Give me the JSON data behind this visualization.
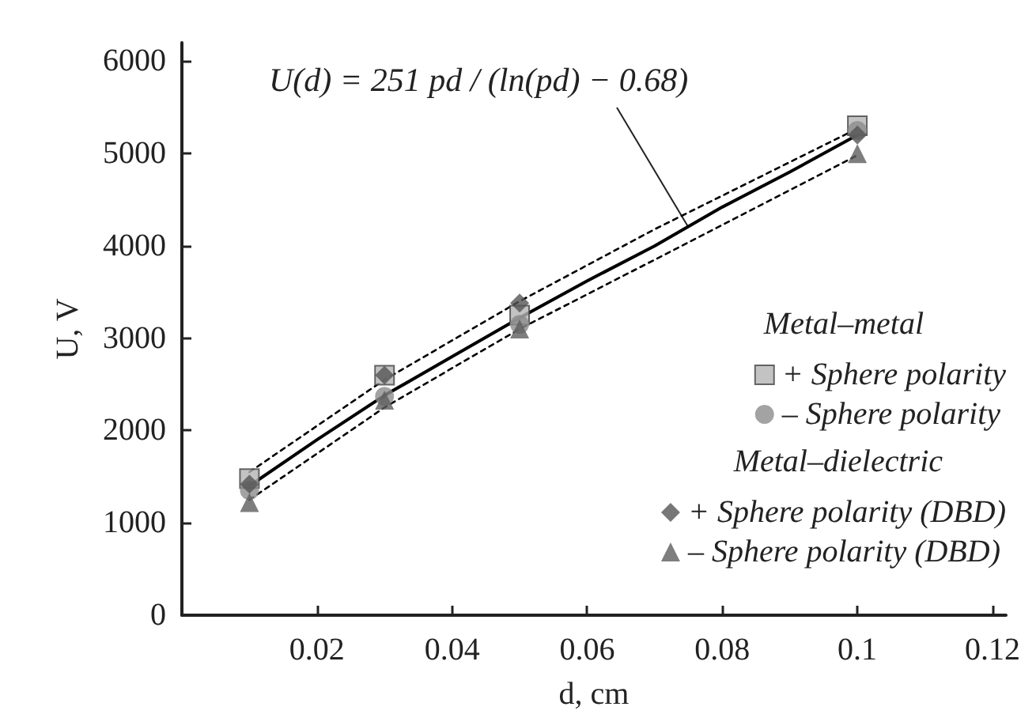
{
  "chart_data": {
    "type": "scatter",
    "xlabel": "d, cm",
    "ylabel": "U, V",
    "xlim": [
      0,
      0.122
    ],
    "xticks": [
      0.02,
      0.04,
      0.06,
      0.08,
      0.1,
      0.12
    ],
    "ylim": [
      0,
      6200
    ],
    "yticks": [
      0,
      1000,
      2000,
      3000,
      4000,
      5000,
      6000
    ],
    "grid": false,
    "legend": "right",
    "annotations": [
      {
        "text": "U(d) = 251 pd / (ln(pd) − 0.68)",
        "x": 0.075,
        "y": 4200
      },
      "Metal–metal",
      "Metal–dielectric"
    ],
    "series": [
      {
        "name": "+ Sphere polarity",
        "color": "#b4b4b4",
        "marker": "square",
        "x": [
          0.01,
          0.03,
          0.05,
          0.1
        ],
        "values": [
          1480,
          2600,
          3250,
          5300
        ]
      },
      {
        "name": "– Sphere polarity",
        "color": "#8c8c8c",
        "marker": "circle",
        "x": [
          0.01,
          0.03,
          0.05,
          0.1
        ],
        "values": [
          1350,
          2370,
          3150,
          5250
        ]
      },
      {
        "name": "+ Sphere polarity (DBD)",
        "color": "#555555",
        "marker": "diamond",
        "x": [
          0.01,
          0.03,
          0.05,
          0.1
        ],
        "values": [
          1420,
          2600,
          3380,
          5200
        ]
      },
      {
        "name": "– Sphere polarity (DBD)",
        "color": "#5e5e5e",
        "marker": "triangle",
        "x": [
          0.01,
          0.03,
          0.05,
          0.1
        ],
        "values": [
          1220,
          2330,
          3100,
          5000
        ]
      },
      {
        "type": "line",
        "color": "#000000",
        "marker": "none",
        "line_style": "solid",
        "x": [
          0.01,
          0.02,
          0.03,
          0.04,
          0.05,
          0.06,
          0.07,
          0.08,
          0.09,
          0.1
        ],
        "values": [
          1400,
          1900,
          2380,
          2800,
          3220,
          3620,
          4000,
          4420,
          4800,
          5200
        ]
      },
      {
        "type": "line",
        "color": "#000000",
        "marker": "none",
        "line_style": "dashed",
        "x": [
          0.01,
          0.03,
          0.05,
          0.07,
          0.1
        ],
        "values": [
          1550,
          2550,
          3400,
          4180,
          5270
        ]
      },
      {
        "type": "line",
        "color": "#000000",
        "marker": "none",
        "line_style": "dashed",
        "x": [
          0.01,
          0.03,
          0.05,
          0.07,
          0.1
        ],
        "values": [
          1250,
          2250,
          3100,
          3850,
          4980
        ]
      }
    ]
  }
}
